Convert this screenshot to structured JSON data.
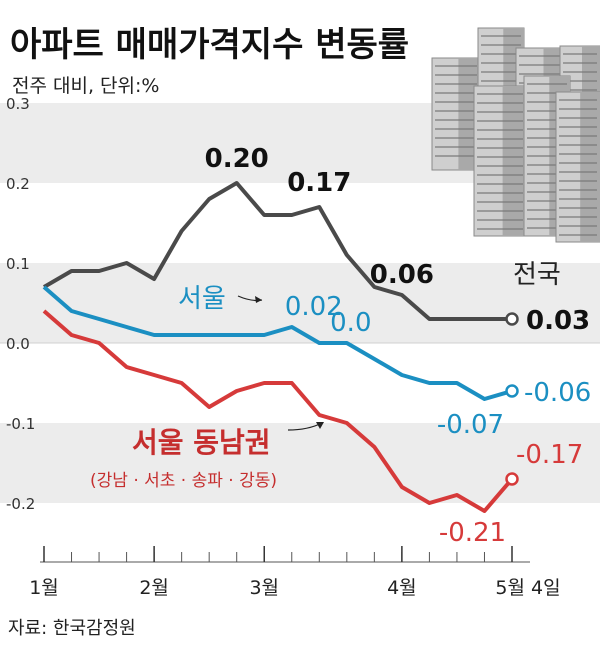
{
  "header": {
    "title": "아파트 매매가격지수 변동률",
    "subtitle": "전주 대비, 단위:%"
  },
  "source": "자료: 한국감정원",
  "chart_data": {
    "type": "line",
    "title": "아파트 매매가격지수 변동률",
    "ylim": [
      -0.25,
      0.3
    ],
    "y_ticks": [
      "0.3",
      "0.2",
      "0.1",
      "0.0",
      "-0.1",
      "-0.2"
    ],
    "y_tick_values": [
      0.3,
      0.2,
      0.1,
      0.0,
      -0.1,
      -0.2
    ],
    "x_tick_labels": [
      "1월",
      "2월",
      "3월",
      "4월",
      "5월 4일"
    ],
    "x_tick_index": [
      0,
      4,
      8,
      13,
      17
    ],
    "grid": "horizontal bands",
    "series": [
      {
        "name": "전국",
        "color": "#4a4a4a",
        "values": [
          0.07,
          0.09,
          0.09,
          0.1,
          0.08,
          0.14,
          0.18,
          0.2,
          0.16,
          0.16,
          0.17,
          0.11,
          0.07,
          0.06,
          0.03,
          0.03,
          0.03,
          0.03
        ]
      },
      {
        "name": "서울",
        "color": "#1b8fc2",
        "values": [
          0.07,
          0.04,
          0.03,
          0.02,
          0.01,
          0.01,
          0.01,
          0.01,
          0.01,
          0.02,
          0.0,
          0.0,
          -0.02,
          -0.04,
          -0.05,
          -0.05,
          -0.07,
          -0.06
        ]
      },
      {
        "name": "서울 동남권",
        "color": "#d63a3a",
        "values": [
          0.04,
          0.01,
          0.0,
          -0.03,
          -0.04,
          -0.05,
          -0.08,
          -0.06,
          -0.05,
          -0.05,
          -0.09,
          -0.1,
          -0.13,
          -0.18,
          -0.2,
          -0.19,
          -0.21,
          -0.17
        ]
      }
    ],
    "data_labels": [
      {
        "series": 0,
        "index": 7,
        "text": "0.20"
      },
      {
        "series": 0,
        "index": 10,
        "text": "0.17"
      },
      {
        "series": 0,
        "index": 13,
        "text": "0.06"
      },
      {
        "series": 0,
        "index": 17,
        "text": "0.03"
      },
      {
        "series": 1,
        "index": 9,
        "text": "0.02"
      },
      {
        "series": 1,
        "index": 11,
        "text": "0.0"
      },
      {
        "series": 1,
        "index": 16,
        "text": "-0.07"
      },
      {
        "series": 1,
        "index": 17,
        "text": "-0.06"
      },
      {
        "series": 2,
        "index": 16,
        "text": "-0.21"
      },
      {
        "series": 2,
        "index": 17,
        "text": "-0.17"
      }
    ],
    "series_labels": {
      "national": "전국",
      "seoul": "서울",
      "southeast": "서울 동남권",
      "southeast_sub": "(강남 · 서초 · 송파 · 강동)"
    }
  }
}
